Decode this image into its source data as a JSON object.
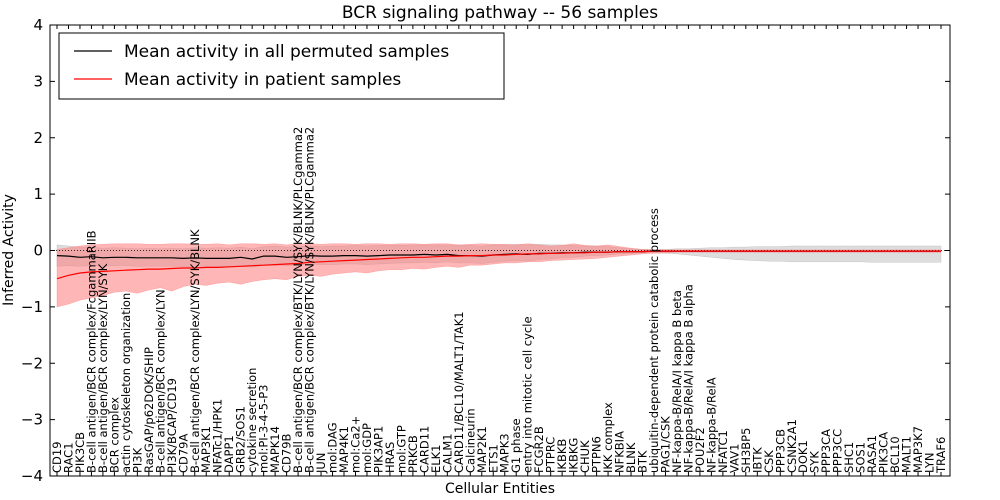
{
  "chart_data": {
    "type": "line",
    "title": "BCR signaling pathway -- 56 samples",
    "xlabel": "Cellular Entities",
    "ylabel": "Inferred Activity",
    "ylim": [
      -4,
      4
    ],
    "yticks": [
      -4,
      -3,
      -2,
      -1,
      0,
      1,
      2,
      3,
      4
    ],
    "ytick_labels": [
      "−4",
      "−3",
      "−2",
      "−1",
      "0",
      "1",
      "2",
      "3",
      "4"
    ],
    "legend_position": "top-left",
    "categories": [
      "CD19",
      "RAC1",
      "PIK3CB",
      "B-cell antigen/BCR complex/FcgammaRIIB",
      "B-cell antigen/BCR complex/LYN/SYK",
      "BCR complex",
      "actin cytoskeleton organization",
      "PI3K",
      "RasGAP/p62DOK/SHIP",
      "B-cell antigen/BCR complex/LYN",
      "PI3K/BCAP/CD19",
      "CD79A",
      "B-cell antigen/BCR complex/LYN/SYK/BLNK",
      "MAP3K1",
      "NFATc1/HPK1",
      "DAPP1",
      "GRB2/SOS1",
      "cytokine secretion",
      "mol:PI-3-4-5-P3",
      "MAPK14",
      "CD79B",
      "B-cell antigen/BCR complex/BTK/LYN/SYK/BLNK/PLCgamma2",
      "B-cell antigen/BCR complex/BTK/LYN/SYK/BLNK/PLCgamma2",
      "JUN",
      "mol:DAG",
      "MAP4K1",
      "mol:Ca2+",
      "mol:GDP",
      "PIK3AP1",
      "HRAS",
      "mol:GTP",
      "PRKCB",
      "CARD11",
      "ELK1",
      "CALM1",
      "CARD11/BCL10/MALT1/TAK1",
      "Calcineurin",
      "MAP2K1",
      "ETS1",
      "MAPK3",
      "G1 phase",
      "entry into mitotic cell cycle",
      "FCGR2B",
      "PTPRC",
      "IKBKB",
      "IKBKG",
      "CHUK",
      "PTPN6",
      "IKK complex",
      "NFKBIA",
      "BLNK",
      "BTK",
      "ubiquitin-dependent protein catabolic process",
      "PAG1/CSK",
      "NF-kappa-B/RelA/I kappa B beta",
      "NF-kappa-B/RelA/I kappa B alpha",
      "POU2F2",
      "NF-kappa-B/RelA",
      "NFATC1",
      "VAV1",
      "SH3BP5",
      "IBTK",
      "CSK",
      "PPP3CB",
      "CSNK2A1",
      "DOK1",
      "SYK",
      "PPP3CA",
      "PPP3CC",
      "SHC1",
      "SOS1",
      "RASA1",
      "PIK3CA",
      "BCL10",
      "MALT1",
      "MAP3K7",
      "LYN",
      "TRAF6"
    ],
    "series": [
      {
        "name": "Mean activity in all permuted samples",
        "color": "#000000",
        "fill_color": "#aaaaaa",
        "values": [
          -0.09,
          -0.1,
          -0.12,
          -0.11,
          -0.13,
          -0.12,
          -0.12,
          -0.13,
          -0.13,
          -0.13,
          -0.13,
          -0.14,
          -0.13,
          -0.14,
          -0.14,
          -0.14,
          -0.12,
          -0.15,
          -0.1,
          -0.1,
          -0.12,
          -0.11,
          -0.09,
          -0.1,
          -0.1,
          -0.09,
          -0.09,
          -0.1,
          -0.09,
          -0.08,
          -0.08,
          -0.08,
          -0.07,
          -0.08,
          -0.07,
          -0.09,
          -0.09,
          -0.1,
          -0.08,
          -0.07,
          -0.06,
          -0.07,
          -0.05,
          -0.05,
          -0.04,
          -0.04,
          -0.03,
          -0.03,
          -0.03,
          -0.02,
          -0.02,
          -0.02,
          -0.01,
          -0.01,
          -0.01,
          -0.01,
          -0.01,
          -0.01,
          -0.01,
          -0.01,
          -0.01,
          -0.01,
          -0.01,
          -0.01,
          -0.01,
          -0.01,
          -0.01,
          -0.01,
          -0.01,
          -0.01,
          -0.01,
          -0.01,
          -0.01,
          -0.01,
          -0.01,
          -0.01,
          -0.01,
          -0.01
        ],
        "upper": [
          0.1,
          0.08,
          0.06,
          0.06,
          0.04,
          0.05,
          0.04,
          0.03,
          0.04,
          0.03,
          0.04,
          0.03,
          0.05,
          0.04,
          0.05,
          0.04,
          0.06,
          0.03,
          0.07,
          0.08,
          0.06,
          0.07,
          0.08,
          0.07,
          0.08,
          0.08,
          0.09,
          0.08,
          0.09,
          0.09,
          0.09,
          0.1,
          0.1,
          0.1,
          0.1,
          0.09,
          0.09,
          0.08,
          0.1,
          0.1,
          0.11,
          0.1,
          0.11,
          0.1,
          0.1,
          0.09,
          0.08,
          0.08,
          0.07,
          0.05,
          0.03,
          0.02,
          0.02,
          0.02,
          0.03,
          0.03,
          0.04,
          0.05,
          0.05,
          0.06,
          0.06,
          0.07,
          0.07,
          0.07,
          0.08,
          0.08,
          0.08,
          0.08,
          0.08,
          0.08,
          0.08,
          0.08,
          0.08,
          0.08,
          0.08,
          0.08,
          0.08,
          0.08
        ],
        "lower": [
          -0.28,
          -0.27,
          -0.28,
          -0.27,
          -0.28,
          -0.27,
          -0.27,
          -0.28,
          -0.28,
          -0.28,
          -0.28,
          -0.29,
          -0.28,
          -0.28,
          -0.29,
          -0.29,
          -0.28,
          -0.3,
          -0.26,
          -0.26,
          -0.27,
          -0.26,
          -0.24,
          -0.25,
          -0.25,
          -0.24,
          -0.24,
          -0.25,
          -0.24,
          -0.23,
          -0.22,
          -0.22,
          -0.21,
          -0.22,
          -0.2,
          -0.22,
          -0.22,
          -0.23,
          -0.21,
          -0.19,
          -0.18,
          -0.19,
          -0.16,
          -0.15,
          -0.13,
          -0.12,
          -0.1,
          -0.09,
          -0.08,
          -0.06,
          -0.05,
          -0.04,
          -0.04,
          -0.05,
          -0.06,
          -0.08,
          -0.1,
          -0.12,
          -0.14,
          -0.16,
          -0.17,
          -0.18,
          -0.19,
          -0.19,
          -0.2,
          -0.2,
          -0.2,
          -0.2,
          -0.2,
          -0.2,
          -0.2,
          -0.21,
          -0.21,
          -0.21,
          -0.21,
          -0.21,
          -0.21,
          -0.21
        ]
      },
      {
        "name": "Mean activity in patient samples",
        "color": "#ff0000",
        "fill_color": "#ff7a7a",
        "values": [
          -0.5,
          -0.44,
          -0.4,
          -0.38,
          -0.37,
          -0.36,
          -0.35,
          -0.34,
          -0.33,
          -0.33,
          -0.32,
          -0.31,
          -0.31,
          -0.3,
          -0.3,
          -0.29,
          -0.28,
          -0.27,
          -0.26,
          -0.25,
          -0.24,
          -0.23,
          -0.21,
          -0.2,
          -0.19,
          -0.18,
          -0.17,
          -0.16,
          -0.15,
          -0.14,
          -0.13,
          -0.12,
          -0.12,
          -0.11,
          -0.1,
          -0.1,
          -0.09,
          -0.09,
          -0.08,
          -0.08,
          -0.07,
          -0.06,
          -0.06,
          -0.05,
          -0.05,
          -0.04,
          -0.04,
          -0.03,
          -0.03,
          -0.02,
          -0.02,
          -0.02,
          -0.01,
          -0.01,
          -0.01,
          -0.01,
          -0.01,
          -0.01,
          -0.01,
          -0.01,
          -0.01,
          -0.01,
          -0.01,
          -0.01,
          -0.01,
          -0.01,
          -0.01,
          -0.01,
          -0.01,
          -0.01,
          -0.01,
          -0.01,
          -0.01,
          -0.01,
          -0.01,
          -0.01,
          -0.01,
          -0.01
        ],
        "upper": [
          0.02,
          0.05,
          0.08,
          0.1,
          0.11,
          0.12,
          0.12,
          0.12,
          0.11,
          0.11,
          0.12,
          0.12,
          0.11,
          0.11,
          0.12,
          0.1,
          0.12,
          0.12,
          0.11,
          0.12,
          0.1,
          0.12,
          0.12,
          0.11,
          0.12,
          0.12,
          0.11,
          0.12,
          0.12,
          0.11,
          0.12,
          0.12,
          0.11,
          0.12,
          0.12,
          0.1,
          0.11,
          0.12,
          0.11,
          0.11,
          0.1,
          0.12,
          0.1,
          0.08,
          0.09,
          0.12,
          0.09,
          0.08,
          0.1,
          0.07,
          0.04,
          0.02,
          0.01,
          0.01,
          0.01,
          0.01,
          0.01,
          0.01,
          0.01,
          0.01,
          0.01,
          0.01,
          0.01,
          0.01,
          0.01,
          0.01,
          0.01,
          0.01,
          0.01,
          0.01,
          0.01,
          0.01,
          0.01,
          0.01,
          0.01,
          0.01,
          0.01,
          0.01
        ],
        "lower": [
          -1.0,
          -0.95,
          -0.88,
          -0.84,
          -0.8,
          -0.74,
          -0.72,
          -0.76,
          -0.7,
          -0.66,
          -0.72,
          -0.64,
          -0.6,
          -0.62,
          -0.58,
          -0.56,
          -0.6,
          -0.55,
          -0.52,
          -0.5,
          -0.52,
          -0.46,
          -0.44,
          -0.46,
          -0.42,
          -0.4,
          -0.38,
          -0.4,
          -0.36,
          -0.34,
          -0.34,
          -0.32,
          -0.33,
          -0.3,
          -0.28,
          -0.3,
          -0.26,
          -0.26,
          -0.24,
          -0.22,
          -0.22,
          -0.2,
          -0.2,
          -0.18,
          -0.17,
          -0.16,
          -0.15,
          -0.14,
          -0.12,
          -0.1,
          -0.08,
          -0.06,
          -0.05,
          -0.04,
          -0.03,
          -0.03,
          -0.03,
          -0.03,
          -0.03,
          -0.03,
          -0.03,
          -0.03,
          -0.03,
          -0.03,
          -0.03,
          -0.03,
          -0.03,
          -0.03,
          -0.03,
          -0.03,
          -0.03,
          -0.03,
          -0.03,
          -0.03,
          -0.03,
          -0.03,
          -0.03,
          -0.03
        ]
      }
    ],
    "reference_line": {
      "y": 0,
      "style": "dotted",
      "color": "#000000"
    }
  }
}
